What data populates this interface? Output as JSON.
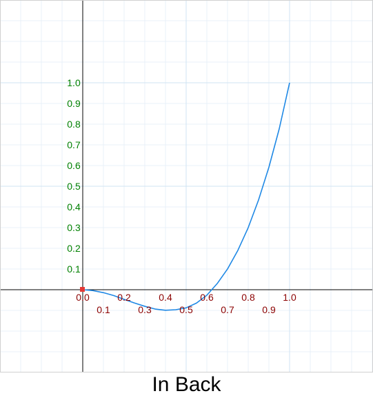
{
  "chart_data": {
    "type": "line",
    "title": "In Back",
    "xlabel": "",
    "ylabel": "",
    "xlim": [
      -0.4,
      1.4
    ],
    "ylim": [
      -0.4,
      1.4
    ],
    "grid": true,
    "x_tick_labels": [
      "0.0",
      "0.1",
      "0.2",
      "0.3",
      "0.4",
      "0.5",
      "0.6",
      "0.7",
      "0.8",
      "0.9",
      "1.0"
    ],
    "y_tick_labels": [
      "0.1",
      "0.2",
      "0.3",
      "0.4",
      "0.5",
      "0.6",
      "0.7",
      "0.8",
      "0.9",
      "1.0"
    ],
    "series": [
      {
        "function": "back_ease_in",
        "x": [
          0,
          0.05,
          0.1,
          0.15,
          0.2,
          0.25,
          0.3,
          0.35,
          0.4,
          0.45,
          0.5,
          0.55,
          0.6,
          0.65,
          0.7,
          0.75,
          0.8,
          0.85,
          0.9,
          0.95,
          1.0
        ],
        "y": [
          0,
          -0.0043,
          -0.0143,
          -0.0282,
          -0.0465,
          -0.0641,
          -0.0802,
          -0.0934,
          -0.0994,
          -0.0967,
          -0.0877,
          -0.0646,
          -0.0267,
          0.0295,
          0.1001,
          0.1901,
          0.2999,
          0.4338,
          0.5917,
          0.7775,
          1.0
        ],
        "color": "#1e88e5"
      }
    ],
    "origin_marker_color": "#e53935",
    "x_label_color": "#8b0000",
    "y_label_color": "#008000"
  }
}
